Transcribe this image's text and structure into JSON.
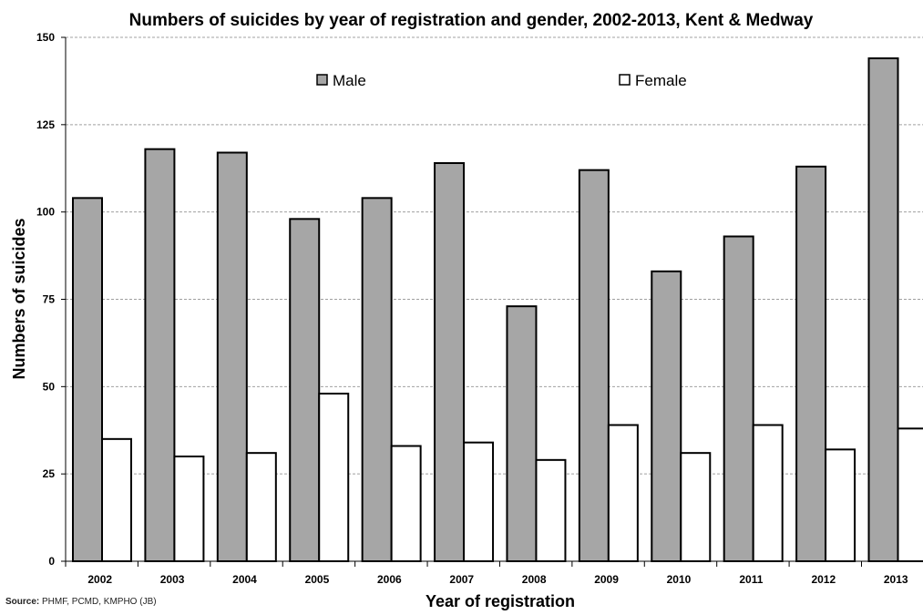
{
  "chart_data": {
    "type": "bar",
    "title": "Numbers of suicides by year of registration and gender, 2002-2013, Kent & Medway",
    "xlabel": "Year of registration",
    "ylabel": "Numbers of suicides",
    "categories": [
      "2002",
      "2003",
      "2004",
      "2005",
      "2006",
      "2007",
      "2008",
      "2009",
      "2010",
      "2011",
      "2012",
      "2013"
    ],
    "series": [
      {
        "name": "Male",
        "color": "#a6a6a6",
        "values": [
          104,
          118,
          117,
          98,
          104,
          114,
          73,
          112,
          83,
          93,
          113,
          144
        ]
      },
      {
        "name": "Female",
        "color": "#ffffff",
        "values": [
          35,
          30,
          31,
          48,
          33,
          34,
          29,
          39,
          31,
          39,
          32,
          38
        ]
      }
    ],
    "ylim": [
      0,
      150
    ],
    "yticks": [
      0,
      25,
      50,
      75,
      100,
      125,
      150
    ],
    "grid": true,
    "legend_position": "top"
  },
  "source": {
    "label": "Source:",
    "text": "PHMF, PCMD, KMPHO (JB)"
  }
}
